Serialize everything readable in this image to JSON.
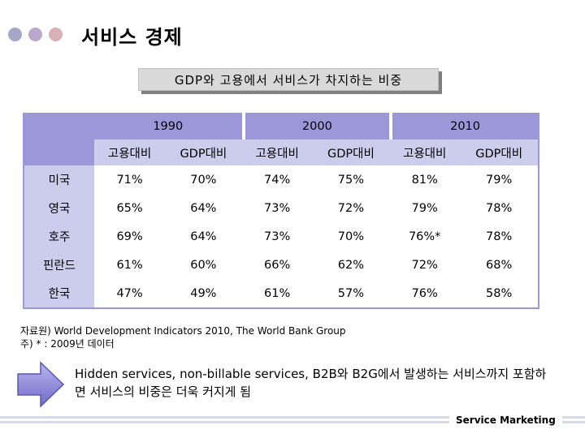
{
  "colors": {
    "dot1": "#a6a6c8",
    "dot2": "#b9a8cc",
    "dot3": "#d8b0b8",
    "header": "#9b97d8",
    "header_light": "#ccccec"
  },
  "title": "서비스 경제",
  "subtitle": "GDP와 고용에서 서비스가 차지하는 비중",
  "table": {
    "years": [
      "1990",
      "2000",
      "2010"
    ],
    "subheaders": [
      "고용대비",
      "GDP대비",
      "고용대비",
      "GDP대비",
      "고용대비",
      "GDP대비"
    ],
    "rows": [
      {
        "country": "미국",
        "values": [
          "71%",
          "70%",
          "74%",
          "75%",
          "81%",
          "79%"
        ]
      },
      {
        "country": "영국",
        "values": [
          "65%",
          "64%",
          "73%",
          "72%",
          "79%",
          "78%"
        ]
      },
      {
        "country": "호주",
        "values": [
          "69%",
          "64%",
          "73%",
          "70%",
          "76%*",
          "78%"
        ]
      },
      {
        "country": "핀란드",
        "values": [
          "61%",
          "60%",
          "66%",
          "62%",
          "72%",
          "68%"
        ]
      },
      {
        "country": "한국",
        "values": [
          "47%",
          "49%",
          "61%",
          "57%",
          "76%",
          "58%"
        ]
      }
    ]
  },
  "source_line": "자료원) World Development Indicators 2010, The World Bank Group",
  "footnote_line": "주) * : 2009년 데이터",
  "note": "Hidden services, non-billable services, B2B와 B2G에서 발생하는 서비스까지 포함하면 서비스의 비중은 더욱 커지게 됨",
  "footer": "Service Marketing",
  "icons": {
    "bullet_dots": "circle-dots",
    "arrow": "right-arrow-icon"
  }
}
